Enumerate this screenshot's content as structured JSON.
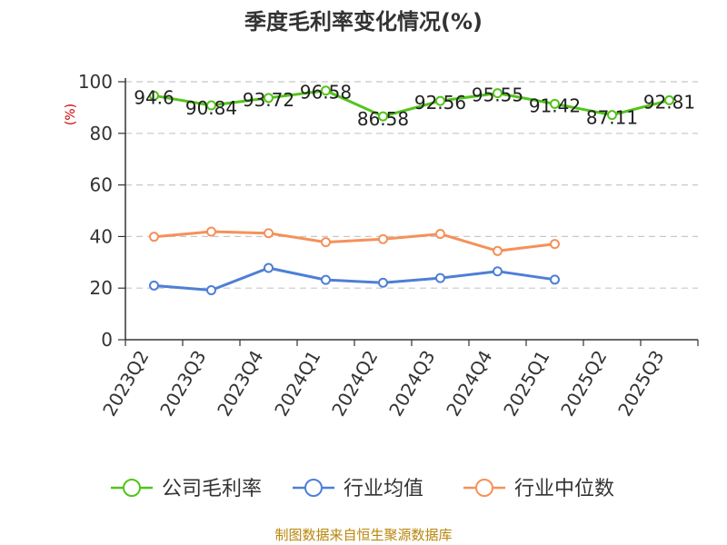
{
  "chart_data": {
    "type": "line",
    "title": "季度毛利率变化情况(%)",
    "ylabel": "(%)",
    "xlabel": "",
    "ylim": [
      0,
      100
    ],
    "yticks": [
      0,
      20,
      40,
      60,
      80,
      100
    ],
    "grid": "horizontal dashed",
    "legend_position": "bottom",
    "categories": [
      "2023Q2",
      "2023Q3",
      "2023Q4",
      "2024Q1",
      "2024Q2",
      "2024Q3",
      "2024Q4",
      "2025Q1",
      "2025Q2",
      "2025Q3"
    ],
    "series": [
      {
        "name": "公司毛利率",
        "color": "#52c41a",
        "values": [
          94.6,
          90.84,
          93.72,
          96.58,
          86.58,
          92.56,
          95.55,
          91.42,
          87.11,
          92.81
        ],
        "labels": [
          "94.6",
          "90.84",
          "93.72",
          "96.58",
          "86.58",
          "92.56",
          "95.55",
          "91.42",
          "87.11",
          "92.81"
        ]
      },
      {
        "name": "行业均值",
        "color": "#4e7fd6",
        "values": [
          21.0,
          19.2,
          27.8,
          23.2,
          22.1,
          23.9,
          26.5,
          23.3,
          null,
          null
        ]
      },
      {
        "name": "行业中位数",
        "color": "#f5915a",
        "values": [
          39.9,
          41.9,
          41.3,
          37.8,
          39.0,
          41.0,
          34.4,
          37.1,
          null,
          null
        ]
      }
    ]
  },
  "footer": {
    "source": "制图数据来自恒生聚源数据库"
  }
}
